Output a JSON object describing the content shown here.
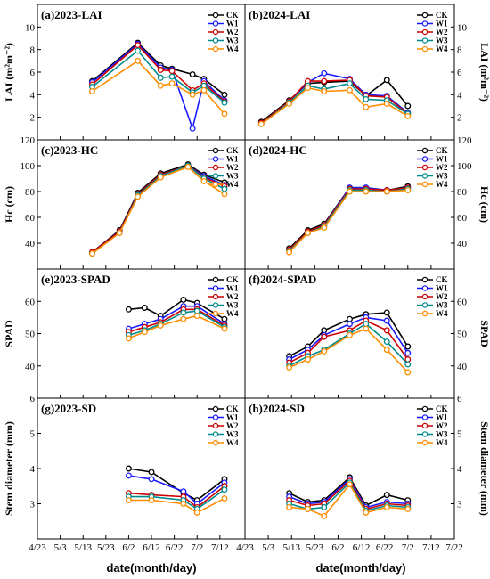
{
  "colors": {
    "CK": "#000000",
    "W1": "#1a1aff",
    "W2": "#cc0000",
    "W3": "#008b8b",
    "W4": "#ff8c00"
  },
  "series_names": [
    "CK",
    "W1",
    "W2",
    "W3",
    "W4"
  ],
  "x_ticks_left": [
    "4/23",
    "5/3",
    "5/13",
    "5/23",
    "6/2",
    "6/12",
    "6/22",
    "7/2",
    "7/12"
  ],
  "x_ticks_right": [
    "4/23",
    "5/3",
    "5/13",
    "5/23",
    "6/2",
    "6/12",
    "6/22",
    "7/2",
    "7/12",
    "7/22"
  ],
  "xlabel": "date(month/day)",
  "rows": [
    {
      "ylabel": "LAI (m²m⁻²)",
      "ylim": [
        0,
        12
      ],
      "yticks": [
        2,
        4,
        6,
        8,
        10
      ]
    },
    {
      "ylabel": "Hc (cm)",
      "ylim": [
        20,
        120
      ],
      "yticks": [
        40,
        60,
        80,
        100,
        120
      ]
    },
    {
      "ylabel": "SPAD",
      "ylim": [
        30,
        70
      ],
      "yticks": [
        40,
        50,
        60
      ]
    },
    {
      "ylabel": "Stem diameter (mm)",
      "ylim": [
        2,
        6
      ],
      "yticks": [
        3,
        4,
        5,
        6
      ]
    }
  ],
  "chart_data": [
    {
      "type": "line",
      "title": "(a)2023-LAI",
      "ylabel": "LAI (m²m⁻²)",
      "ylim": [
        0,
        12
      ],
      "legend": "top-right",
      "x": [
        "5/17",
        "6/6",
        "6/16",
        "6/21",
        "6/30",
        "7/5",
        "7/14"
      ],
      "series": [
        {
          "name": "CK",
          "values": [
            5.2,
            8.6,
            6.6,
            6.3,
            5.8,
            5.4,
            4.0
          ]
        },
        {
          "name": "W1",
          "values": [
            5.1,
            8.5,
            6.4,
            6.2,
            1.0,
            5.2,
            3.5
          ]
        },
        {
          "name": "W2",
          "values": [
            4.9,
            8.4,
            6.2,
            6.1,
            4.4,
            5.0,
            3.4
          ]
        },
        {
          "name": "W3",
          "values": [
            4.7,
            7.9,
            5.5,
            5.6,
            4.2,
            4.8,
            3.3
          ]
        },
        {
          "name": "W4",
          "values": [
            4.3,
            7.0,
            4.8,
            5.0,
            4.0,
            4.4,
            2.3
          ]
        }
      ]
    },
    {
      "type": "line",
      "title": "(b)2024-LAI",
      "ylabel": "LAI (m²m⁻²)",
      "ylim": [
        0,
        12
      ],
      "legend": "top-right",
      "x": [
        "4/30",
        "5/12",
        "5/20",
        "5/27",
        "6/7",
        "6/14",
        "6/23",
        "7/2"
      ],
      "series": [
        {
          "name": "CK",
          "values": [
            1.6,
            3.5,
            5.0,
            5.1,
            5.2,
            3.9,
            5.3,
            3.0
          ]
        },
        {
          "name": "W1",
          "values": [
            1.5,
            3.4,
            5.1,
            5.9,
            5.4,
            4.0,
            3.9,
            2.4
          ]
        },
        {
          "name": "W2",
          "values": [
            1.5,
            3.4,
            5.2,
            5.2,
            5.3,
            3.9,
            3.8,
            2.3
          ]
        },
        {
          "name": "W3",
          "values": [
            1.4,
            3.3,
            4.8,
            4.5,
            5.0,
            3.6,
            3.5,
            2.3
          ]
        },
        {
          "name": "W4",
          "values": [
            1.4,
            3.2,
            4.6,
            4.3,
            4.4,
            2.9,
            3.2,
            2.1
          ]
        }
      ]
    },
    {
      "type": "line",
      "title": "(c)2023-HC",
      "ylabel": "Hc (cm)",
      "ylim": [
        20,
        120
      ],
      "legend": "top-right",
      "x": [
        "5/17",
        "5/29",
        "6/6",
        "6/16",
        "6/28",
        "7/5",
        "7/14"
      ],
      "series": [
        {
          "name": "CK",
          "values": [
            33,
            50,
            79,
            94,
            101,
            93,
            87
          ]
        },
        {
          "name": "W1",
          "values": [
            33,
            49,
            78,
            93,
            100,
            92,
            85
          ]
        },
        {
          "name": "W2",
          "values": [
            33,
            49,
            78,
            93,
            100,
            91,
            84
          ]
        },
        {
          "name": "W3",
          "values": [
            32,
            48,
            77,
            92,
            100,
            90,
            82
          ]
        },
        {
          "name": "W4",
          "values": [
            32,
            48,
            76,
            91,
            99,
            88,
            78
          ]
        }
      ]
    },
    {
      "type": "line",
      "title": "(d)2024-HC",
      "ylabel": "Hc (cm)",
      "ylim": [
        20,
        120
      ],
      "legend": "top-right",
      "x": [
        "5/12",
        "5/20",
        "5/27",
        "6/7",
        "6/14",
        "6/23",
        "7/2"
      ],
      "series": [
        {
          "name": "CK",
          "values": [
            36,
            50,
            55,
            83,
            83,
            81,
            84
          ]
        },
        {
          "name": "W1",
          "values": [
            35,
            49,
            54,
            83,
            83,
            81,
            83
          ]
        },
        {
          "name": "W2",
          "values": [
            35,
            49,
            54,
            82,
            82,
            81,
            83
          ]
        },
        {
          "name": "W3",
          "values": [
            34,
            48,
            53,
            81,
            81,
            80,
            82
          ]
        },
        {
          "name": "W4",
          "values": [
            33,
            48,
            52,
            80,
            80,
            80,
            81
          ]
        }
      ]
    },
    {
      "type": "line",
      "title": "(e)2023-SPAD",
      "ylabel": "SPAD",
      "ylim": [
        30,
        70
      ],
      "legend": "top-right",
      "x": [
        "6/2",
        "6/9",
        "6/16",
        "6/26",
        "7/2",
        "7/14"
      ],
      "series": [
        {
          "name": "CK",
          "values": [
            57.5,
            58,
            55.5,
            60.5,
            59.5,
            54.5
          ]
        },
        {
          "name": "W1",
          "values": [
            51.5,
            53,
            54.5,
            58.5,
            58.5,
            53
          ]
        },
        {
          "name": "W2",
          "values": [
            50.5,
            52,
            53.5,
            57.5,
            57.5,
            52.5
          ]
        },
        {
          "name": "W3",
          "values": [
            49.5,
            51,
            53,
            56.5,
            57,
            52
          ]
        },
        {
          "name": "W4",
          "values": [
            48.5,
            50.5,
            52.5,
            54.5,
            55.5,
            51.5
          ]
        }
      ]
    },
    {
      "type": "line",
      "title": "(f)2024-SPAD",
      "ylabel": "SPAD",
      "ylim": [
        30,
        70
      ],
      "legend": "top-right",
      "x": [
        "5/12",
        "5/20",
        "5/27",
        "6/7",
        "6/14",
        "6/23",
        "7/2"
      ],
      "series": [
        {
          "name": "CK",
          "values": [
            43,
            46,
            51,
            54.5,
            56,
            56.5,
            46
          ]
        },
        {
          "name": "W1",
          "values": [
            42,
            45,
            49.5,
            53,
            55,
            54,
            44
          ]
        },
        {
          "name": "W2",
          "values": [
            41,
            44,
            49,
            51,
            54,
            51,
            42
          ]
        },
        {
          "name": "W3",
          "values": [
            40,
            43,
            45,
            50,
            53,
            47.5,
            40.5
          ]
        },
        {
          "name": "W4",
          "values": [
            39.5,
            42,
            44.5,
            49.5,
            51.5,
            45,
            38
          ]
        }
      ]
    },
    {
      "type": "line",
      "title": "(g)2023-SD",
      "ylabel": "Stem diameter (mm)",
      "ylim": [
        2,
        6
      ],
      "legend": "top-right",
      "x": [
        "6/2",
        "6/12",
        "6/26",
        "7/2",
        "7/14"
      ],
      "series": [
        {
          "name": "CK",
          "values": [
            4.0,
            3.9,
            3.3,
            3.1,
            3.7
          ]
        },
        {
          "name": "W1",
          "values": [
            3.8,
            3.7,
            3.35,
            3.0,
            3.6
          ]
        },
        {
          "name": "W2",
          "values": [
            3.3,
            3.25,
            3.2,
            2.9,
            3.5
          ]
        },
        {
          "name": "W3",
          "values": [
            3.2,
            3.2,
            3.1,
            2.85,
            3.4
          ]
        },
        {
          "name": "W4",
          "values": [
            3.1,
            3.1,
            3.0,
            2.75,
            3.15
          ]
        }
      ]
    },
    {
      "type": "line",
      "title": "(h)2024-SD",
      "ylabel": "Stem diameter (mm)",
      "ylim": [
        2,
        6
      ],
      "legend": "top-right",
      "x": [
        "5/12",
        "5/20",
        "5/27",
        "6/7",
        "6/14",
        "6/23",
        "7/2"
      ],
      "series": [
        {
          "name": "CK",
          "values": [
            3.3,
            3.05,
            3.1,
            3.75,
            2.95,
            3.25,
            3.1
          ]
        },
        {
          "name": "W1",
          "values": [
            3.2,
            3.0,
            3.05,
            3.7,
            2.9,
            3.05,
            3.0
          ]
        },
        {
          "name": "W2",
          "values": [
            3.1,
            2.95,
            3.0,
            3.65,
            2.85,
            3.0,
            2.95
          ]
        },
        {
          "name": "W3",
          "values": [
            3.0,
            2.85,
            2.9,
            3.6,
            2.8,
            2.95,
            2.9
          ]
        },
        {
          "name": "W4",
          "values": [
            2.9,
            2.85,
            2.65,
            3.55,
            2.75,
            2.9,
            2.85
          ]
        }
      ]
    }
  ]
}
